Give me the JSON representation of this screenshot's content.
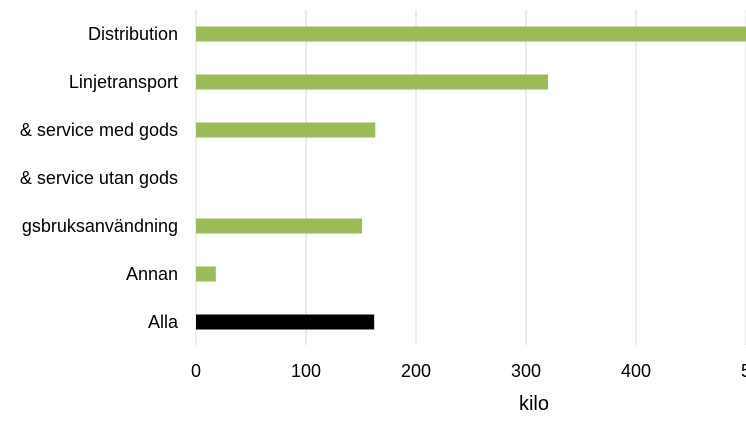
{
  "chart_data": {
    "type": "bar",
    "orientation": "horizontal",
    "categories": [
      "Distribution",
      "Linjetransport",
      "& service med gods",
      "& service utan gods",
      "gsbruksanvändning",
      "Annan",
      "Alla"
    ],
    "values": [
      500,
      320,
      163,
      0,
      151,
      18,
      162
    ],
    "bar_colors": [
      "#9bbb59",
      "#9bbb59",
      "#9bbb59",
      "#9bbb59",
      "#9bbb59",
      "#9bbb59",
      "#000000"
    ],
    "x_ticks": [
      "0",
      "100",
      "200",
      "300",
      "400",
      "5"
    ],
    "xlabel": "kilo",
    "ylabel": "",
    "title": "",
    "xlim": [
      0,
      500
    ],
    "grid": "vertical",
    "grid_color": "#d9d9d9",
    "legend": "none"
  }
}
